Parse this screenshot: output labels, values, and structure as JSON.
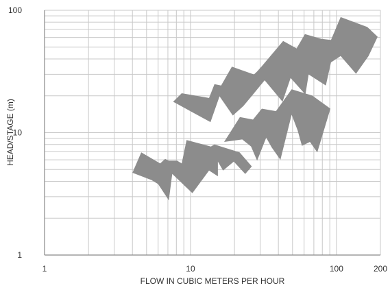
{
  "chart_data": {
    "type": "area",
    "title": "",
    "xlabel": "FLOW IN CUBIC METERS PER HOUR",
    "ylabel": "HEAD/STAGE (m)",
    "x_scale": "log",
    "y_scale": "log",
    "xlim": [
      1,
      200
    ],
    "ylim": [
      1,
      100
    ],
    "x_tick_labels": [
      "1",
      "10",
      "100",
      "200"
    ],
    "y_tick_labels": [
      "1",
      "10",
      "100"
    ],
    "grid": true,
    "legend": "none",
    "colors": {
      "region_fill": "#8c8c8c",
      "grid": "#c8c8c8",
      "axis": "#888888",
      "text": "#333333"
    },
    "series": [
      {
        "values": [
          [
            4.0,
            4.7
          ],
          [
            4.6,
            6.9
          ],
          [
            6.2,
            5.6
          ],
          [
            6.7,
            6.1
          ],
          [
            7.1,
            5.9
          ],
          [
            8.1,
            5.9
          ],
          [
            8.7,
            5.6
          ],
          [
            9.4,
            8.7
          ],
          [
            13.8,
            7.7
          ],
          [
            14.6,
            8.0
          ],
          [
            21.7,
            6.9
          ],
          [
            26.3,
            5.3
          ],
          [
            23.7,
            4.6
          ],
          [
            19.8,
            5.8
          ],
          [
            16.7,
            4.9
          ],
          [
            15.4,
            5.8
          ],
          [
            15.4,
            4.4
          ],
          [
            13.4,
            4.9
          ],
          [
            10.3,
            3.2
          ],
          [
            9.3,
            3.6
          ],
          [
            7.5,
            4.6
          ],
          [
            7.1,
            2.8
          ],
          [
            6.0,
            3.8
          ],
          [
            5.4,
            4.1
          ]
        ]
      },
      {
        "values": [
          [
            7.6,
            17.9
          ],
          [
            8.7,
            21.0
          ],
          [
            13.4,
            19.2
          ],
          [
            14.6,
            24.9
          ],
          [
            16.2,
            24.3
          ],
          [
            19.2,
            34.6
          ],
          [
            27.2,
            29.9
          ],
          [
            28.6,
            31.6
          ],
          [
            30.6,
            34.6
          ],
          [
            43.1,
            56.2
          ],
          [
            53.3,
            48.8
          ],
          [
            60.8,
            63.8
          ],
          [
            70.3,
            60.8
          ],
          [
            79.1,
            58.4
          ],
          [
            91.7,
            57.3
          ],
          [
            106.8,
            88.0
          ],
          [
            162.6,
            73.0
          ],
          [
            191.5,
            60.8
          ],
          [
            165.9,
            42.3
          ],
          [
            136.1,
            30.3
          ],
          [
            106.8,
            42.3
          ],
          [
            91.7,
            37.5
          ],
          [
            84.6,
            24.3
          ],
          [
            64.5,
            29.9
          ],
          [
            61.3,
            20.5
          ],
          [
            48.5,
            28.0
          ],
          [
            42.7,
            17.9
          ],
          [
            32.2,
            26.8
          ],
          [
            26.8,
            20.5
          ],
          [
            23.0,
            16.5
          ],
          [
            19.5,
            13.8
          ],
          [
            15.8,
            19.8
          ],
          [
            13.7,
            12.2
          ],
          [
            10.4,
            14.6
          ]
        ]
      },
      {
        "values": [
          [
            17.0,
            8.4
          ],
          [
            21.8,
            13.4
          ],
          [
            26.8,
            12.8
          ],
          [
            30.8,
            15.7
          ],
          [
            38.5,
            15.0
          ],
          [
            49.3,
            22.6
          ],
          [
            68.3,
            20.1
          ],
          [
            90.9,
            15.7
          ],
          [
            73.9,
            6.9
          ],
          [
            65.8,
            8.4
          ],
          [
            58.0,
            7.8
          ],
          [
            54.1,
            10.5
          ],
          [
            49.3,
            14.0
          ],
          [
            41.3,
            6.0
          ],
          [
            35.9,
            7.6
          ],
          [
            33.0,
            9.1
          ],
          [
            28.6,
            5.9
          ],
          [
            26.0,
            7.7
          ],
          [
            22.6,
            8.8
          ]
        ]
      }
    ]
  }
}
